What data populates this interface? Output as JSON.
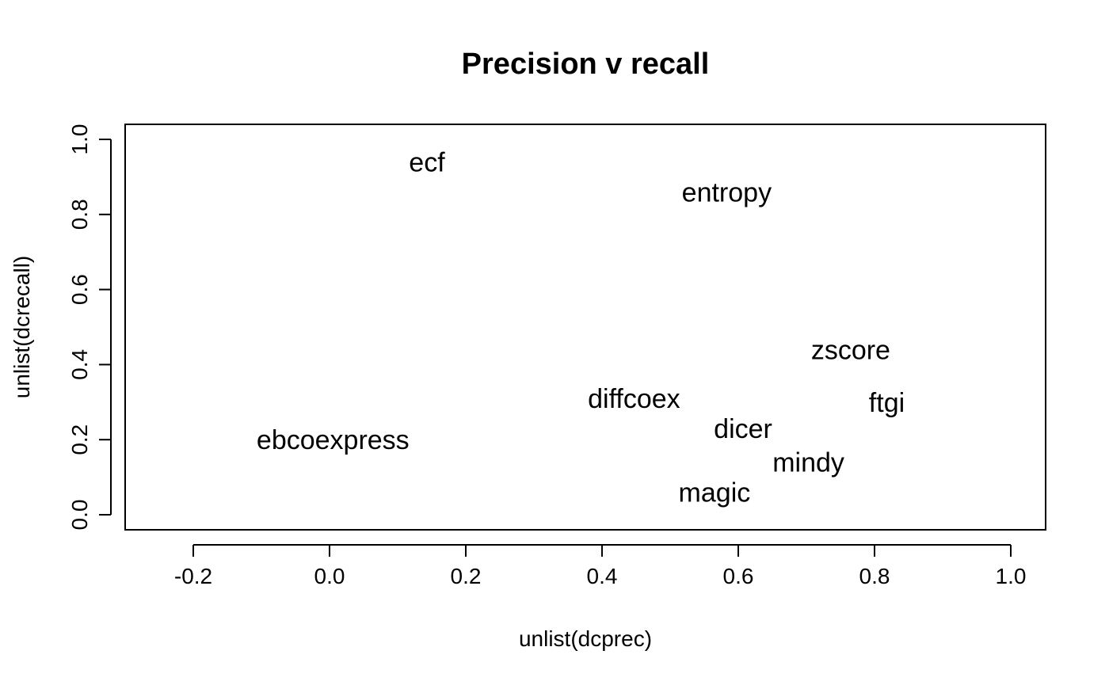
{
  "chart_data": {
    "type": "scatter",
    "title": "Precision v recall",
    "xlabel": "unlist(dcprec)",
    "ylabel": "unlist(dcrecall)",
    "xlim": [
      -0.3,
      1.05
    ],
    "ylim": [
      -0.04,
      1.04
    ],
    "grid": false,
    "x_ticks": [
      -0.2,
      0.0,
      0.2,
      0.4,
      0.6,
      0.8,
      1.0
    ],
    "x_tick_labels": [
      "-0.2",
      "0.0",
      "0.2",
      "0.4",
      "0.6",
      "0.8",
      "1.0"
    ],
    "y_ticks": [
      0.0,
      0.2,
      0.4,
      0.6,
      0.8,
      1.0
    ],
    "y_tick_labels": [
      "0.0",
      "0.2",
      "0.4",
      "0.6",
      "0.8",
      "1.0"
    ],
    "points": [
      {
        "label": "ecf",
        "x": 0.143,
        "y": 0.94
      },
      {
        "label": "entropy",
        "x": 0.583,
        "y": 0.86
      },
      {
        "label": "zscore",
        "x": 0.765,
        "y": 0.44
      },
      {
        "label": "diffcoex",
        "x": 0.447,
        "y": 0.31
      },
      {
        "label": "ftgi",
        "x": 0.818,
        "y": 0.3
      },
      {
        "label": "dicer",
        "x": 0.607,
        "y": 0.23
      },
      {
        "label": "ebcoexpress",
        "x": 0.005,
        "y": 0.2
      },
      {
        "label": "mindy",
        "x": 0.703,
        "y": 0.14
      },
      {
        "label": "magic",
        "x": 0.565,
        "y": 0.06
      }
    ]
  }
}
